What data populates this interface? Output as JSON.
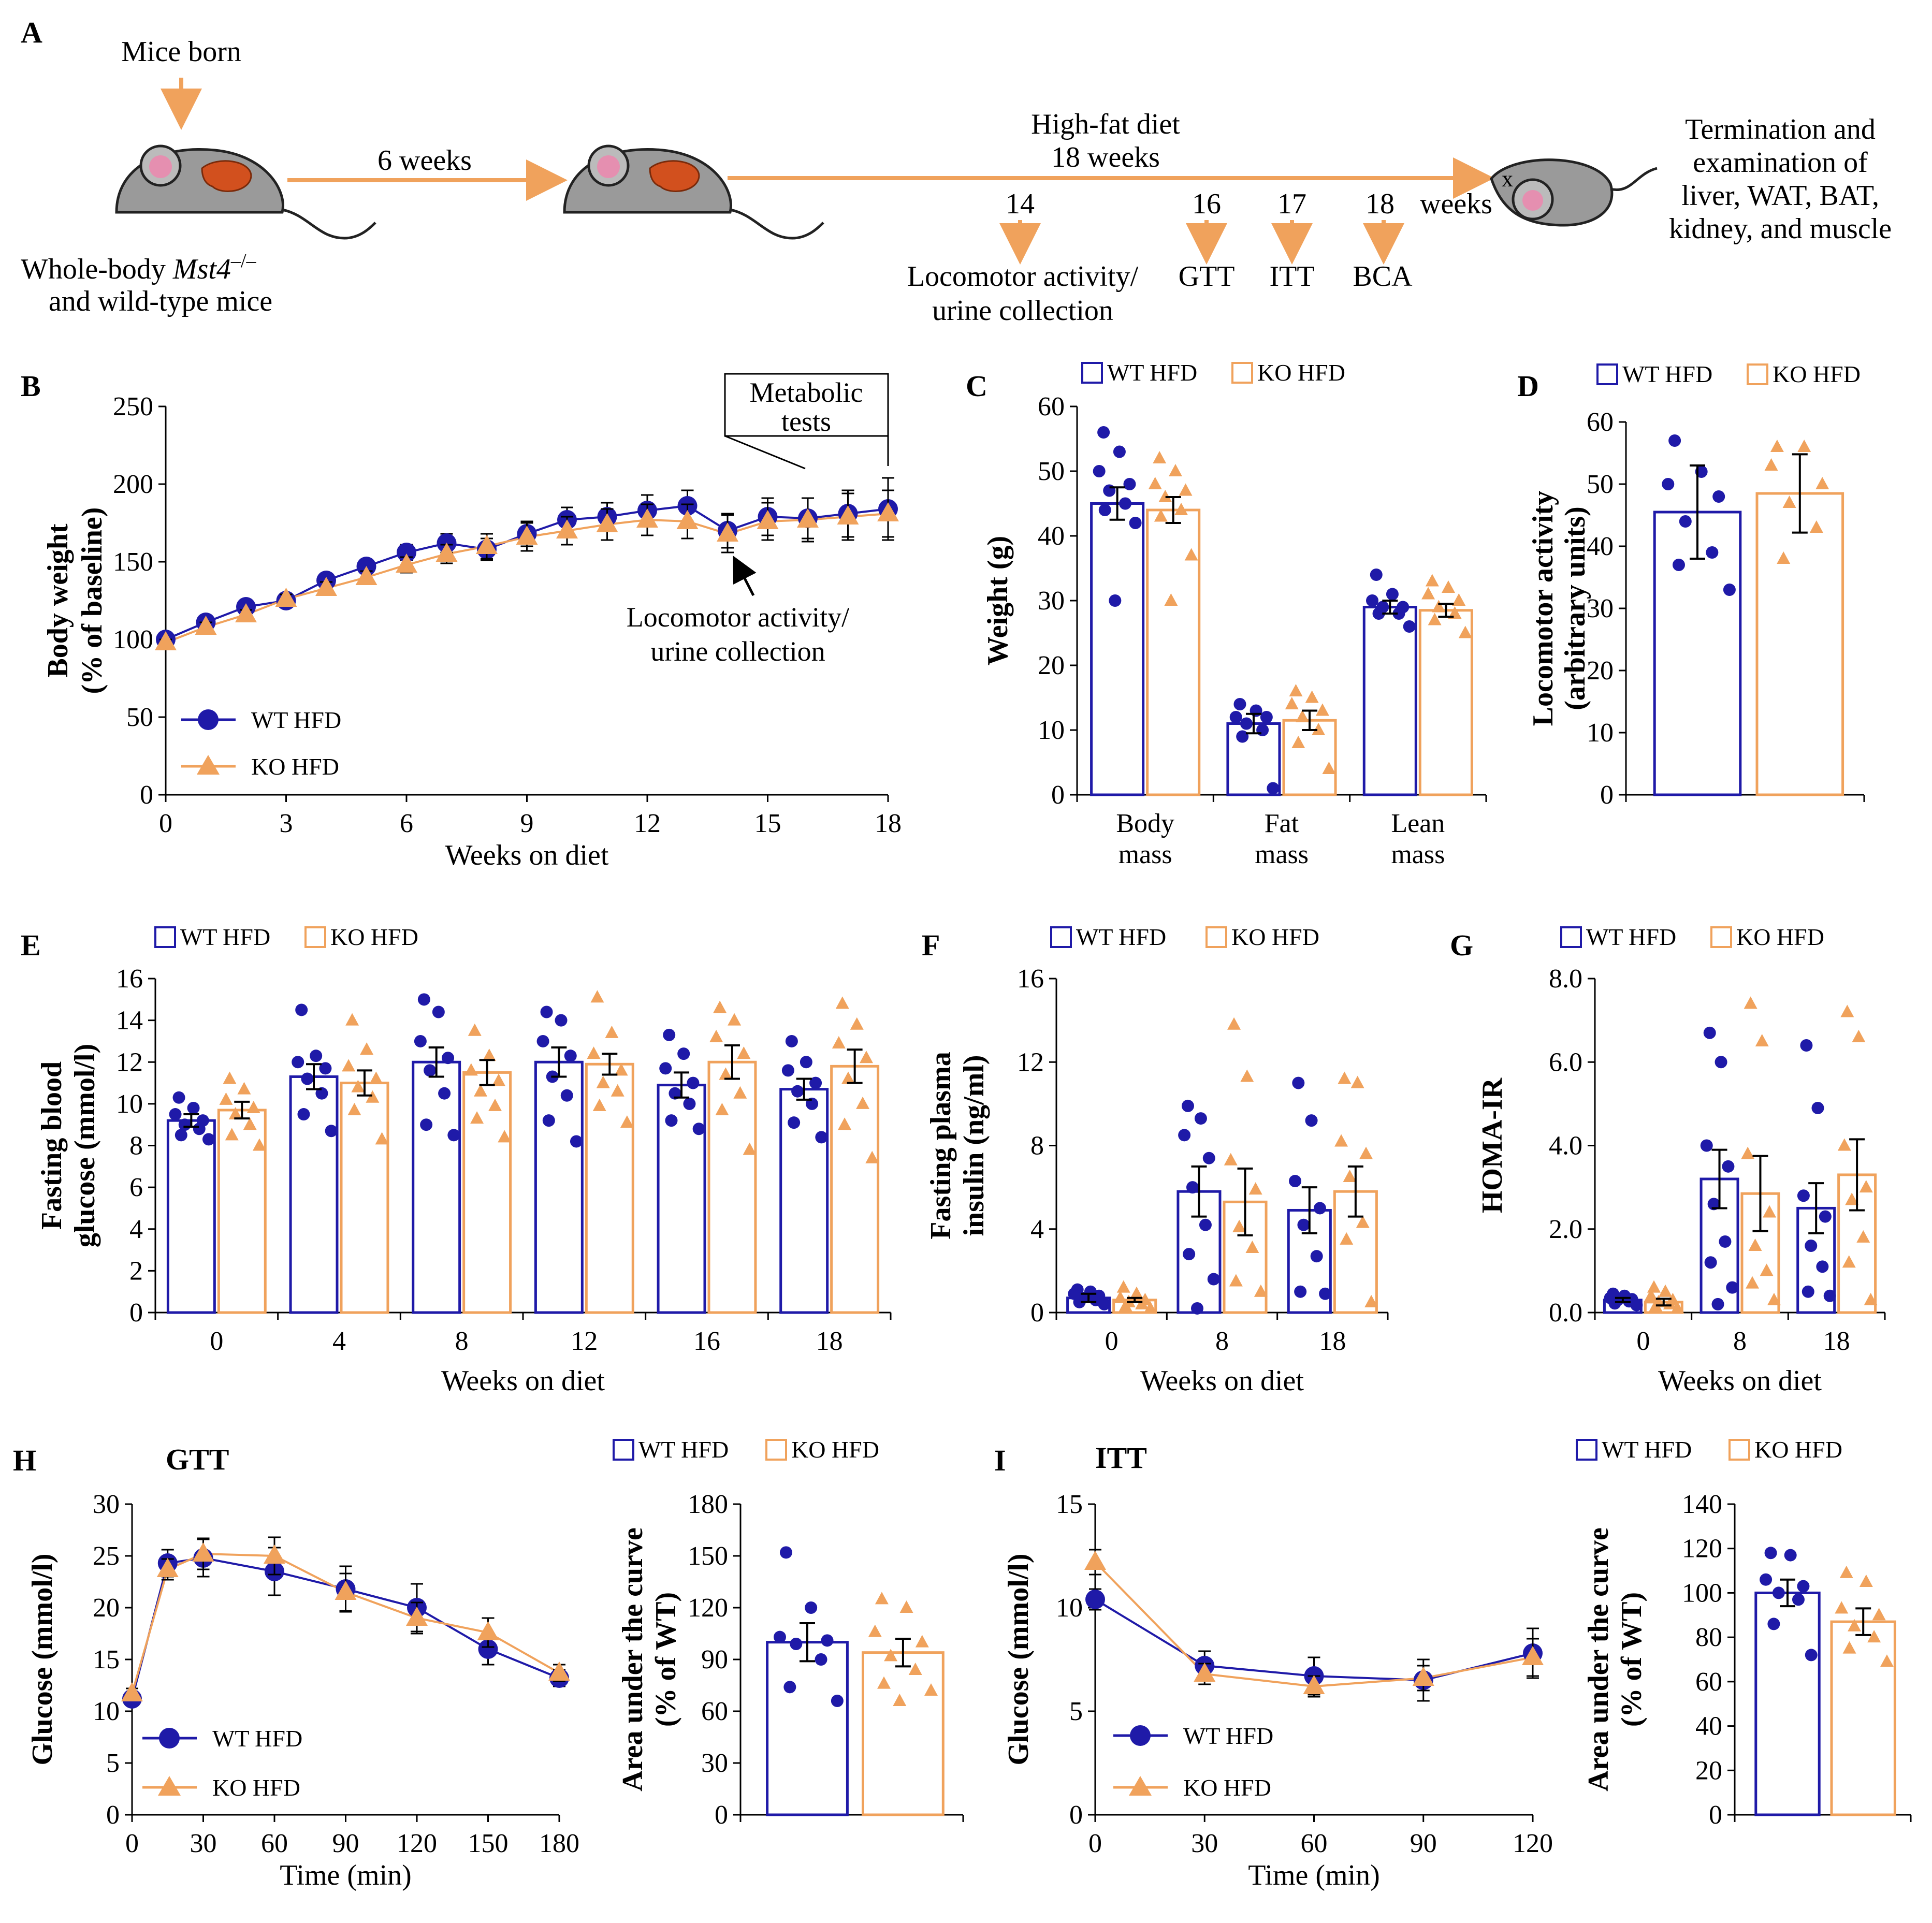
{
  "colors": {
    "wt": "#1f1aa8",
    "ko": "#f0a25c",
    "axis": "#000000"
  },
  "series_names": {
    "wt": "WT HFD",
    "ko": "KO HFD"
  },
  "panel_a": {
    "letter": "A",
    "mice_born": "Mice born",
    "whole_body_prefix": "Whole-body ",
    "gene": "Mst4",
    "superscript": "–/–",
    "line2": "and wild-type mice",
    "six_weeks": "6 weeks",
    "hfd_line1": "High-fat diet",
    "hfd_line2": "18 weeks",
    "weeks": "weeks",
    "marks": [
      {
        "num": "14",
        "label1": "Locomotor activity/",
        "label2": "urine collection"
      },
      {
        "num": "16",
        "label1": "GTT",
        "label2": ""
      },
      {
        "num": "17",
        "label1": "ITT",
        "label2": ""
      },
      {
        "num": "18",
        "label1": "BCA",
        "label2": ""
      }
    ],
    "termination": [
      "Termination and",
      "examination of",
      "liver, WAT, BAT,",
      "kidney, and muscle"
    ],
    "dead_mark": "x"
  },
  "chart_data": [
    {
      "id": "B",
      "type": "line",
      "letter": "B",
      "ylabel": [
        "Body weight",
        "(% of baseline)"
      ],
      "xlabel": "Weeks on diet",
      "ylim": [
        0,
        250
      ],
      "yticks": [
        0,
        50,
        100,
        150,
        200,
        250
      ],
      "xlim": [
        0,
        18
      ],
      "xticks": [
        0,
        3,
        6,
        9,
        12,
        15,
        18
      ],
      "x": [
        0,
        1,
        2,
        3,
        4,
        5,
        6,
        7,
        8,
        9,
        10,
        11,
        12,
        13,
        14,
        15,
        16,
        17,
        18
      ],
      "series": [
        {
          "name": "WT HFD",
          "values": [
            100,
            111,
            121,
            125,
            138,
            147,
            156,
            162,
            158,
            168,
            177,
            179,
            183,
            186,
            170,
            179,
            178,
            181,
            184
          ],
          "err": [
            2,
            3,
            3,
            3,
            4,
            4,
            5,
            6,
            7,
            8,
            8,
            9,
            10,
            10,
            11,
            12,
            13,
            15,
            20
          ]
        },
        {
          "name": "KO HFD",
          "values": [
            98,
            108,
            116,
            126,
            133,
            140,
            148,
            155,
            160,
            166,
            170,
            174,
            177,
            176,
            168,
            176,
            177,
            179,
            181
          ],
          "err": [
            2,
            3,
            3,
            3,
            4,
            4,
            5,
            6,
            8,
            9,
            9,
            10,
            10,
            11,
            12,
            12,
            14,
            15,
            15
          ]
        }
      ],
      "annotations": {
        "box": [
          "Metabolic",
          "tests"
        ],
        "arrow_text": [
          "Locomotor activity/",
          "urine collection"
        ]
      }
    },
    {
      "id": "C",
      "type": "bar",
      "letter": "C",
      "ylabel": [
        "Weight (g)"
      ],
      "xlabel": "",
      "ylim": [
        0,
        60
      ],
      "yticks": [
        0,
        10,
        20,
        30,
        40,
        50,
        60
      ],
      "categories": [
        [
          "Body",
          "mass"
        ],
        [
          "Fat",
          "mass"
        ],
        [
          "Lean",
          "mass"
        ]
      ],
      "series": [
        {
          "name": "WT HFD",
          "values": [
            45,
            11,
            29
          ],
          "err": [
            2.5,
            1.5,
            1
          ],
          "points": [
            [
              56,
              53,
              50,
              48,
              47,
              45,
              44,
              42,
              30
            ],
            [
              14,
              13,
              12,
              12,
              11,
              10,
              9,
              1
            ]
          ],
          "points3": [
            34,
            31,
            30,
            29,
            29,
            28,
            28,
            26
          ]
        },
        {
          "name": "KO HFD",
          "values": [
            44,
            11.5,
            28.5
          ],
          "err": [
            2,
            1.5,
            1
          ],
          "points": [
            [
              52,
              50,
              48,
              47,
              46,
              44,
              43,
              37,
              30
            ],
            [
              16,
              15,
              14,
              13,
              12,
              10,
              8,
              4
            ]
          ],
          "points3": [
            33,
            32,
            31,
            30,
            29,
            28,
            27,
            25
          ]
        }
      ]
    },
    {
      "id": "D",
      "type": "bar",
      "letter": "D",
      "ylabel": [
        "Locomotor activity",
        "(arbitrary units)"
      ],
      "xlabel": "",
      "ylim": [
        0,
        60
      ],
      "yticks": [
        0,
        10,
        20,
        30,
        40,
        50,
        60
      ],
      "categories": [
        [
          ""
        ]
      ],
      "series": [
        {
          "name": "WT HFD",
          "values": [
            45.5
          ],
          "err": [
            7.5
          ],
          "points": [
            [
              57,
              52,
              50,
              48,
              44,
              39,
              37,
              33
            ]
          ]
        },
        {
          "name": "KO HFD",
          "values": [
            48.5
          ],
          "err": [
            6.3
          ],
          "points": [
            [
              56,
              56,
              53,
              50,
              47,
              43,
              38
            ]
          ]
        }
      ]
    },
    {
      "id": "E",
      "type": "bar",
      "letter": "E",
      "ylabel": [
        "Fasting blood",
        "glucose (mmol/l)"
      ],
      "xlabel": "Weeks on diet",
      "ylim": [
        0,
        16
      ],
      "yticks": [
        0,
        2,
        4,
        6,
        8,
        10,
        12,
        14,
        16
      ],
      "categories": [
        [
          "0"
        ],
        [
          "4"
        ],
        [
          "8"
        ],
        [
          "12"
        ],
        [
          "16"
        ],
        [
          "18"
        ]
      ],
      "series": [
        {
          "name": "WT HFD",
          "values": [
            9.2,
            11.3,
            12.0,
            12.0,
            10.9,
            10.7
          ],
          "err": [
            0.3,
            0.6,
            0.7,
            0.7,
            0.6,
            0.5
          ],
          "points": [
            [
              10.3,
              9.8,
              9.5,
              9.2,
              9.0,
              8.8,
              8.5,
              8.3
            ],
            [
              14.5,
              12.3,
              12.0,
              11.7,
              11.2,
              10.5,
              9.5,
              8.7
            ],
            [
              15.0,
              14.4,
              13.0,
              12.2,
              11.6,
              10.5,
              9.0,
              8.5
            ],
            [
              14.4,
              14.0,
              13.0,
              12.3,
              11.3,
              10.4,
              9.2,
              8.2
            ],
            [
              13.3,
              12.4,
              11.7,
              11.0,
              10.5,
              10.0,
              9.2,
              8.8
            ],
            [
              13.0,
              12.0,
              11.6,
              11.0,
              10.6,
              10.0,
              9.1,
              8.4
            ]
          ]
        },
        {
          "name": "KO HFD",
          "values": [
            9.7,
            11.0,
            11.5,
            11.9,
            12.0,
            11.8
          ],
          "err": [
            0.4,
            0.6,
            0.6,
            0.5,
            0.8,
            0.8
          ],
          "points": [
            [
              11.2,
              10.7,
              10.2,
              9.8,
              9.5,
              9.0,
              8.5,
              8.0
            ],
            [
              14.0,
              12.6,
              11.8,
              11.2,
              10.8,
              10.3,
              9.7,
              8.3
            ],
            [
              13.5,
              12.3,
              11.6,
              11.1,
              10.6,
              9.9,
              9.3,
              8.4
            ],
            [
              15.1,
              13.4,
              12.4,
              11.6,
              11.0,
              10.6,
              9.9,
              9.1
            ],
            [
              14.6,
              14.0,
              13.2,
              12.4,
              11.4,
              10.5,
              9.7,
              7.8
            ],
            [
              14.8,
              13.8,
              12.9,
              12.2,
              11.2,
              10.0,
              9.0,
              7.4
            ]
          ]
        }
      ]
    },
    {
      "id": "F",
      "type": "bar",
      "letter": "F",
      "ylabel": [
        "Fasting plasma",
        "insulin (ng/ml)"
      ],
      "xlabel": "Weeks on diet",
      "ylim": [
        0,
        16
      ],
      "yticks": [
        0,
        4,
        8,
        12,
        16
      ],
      "categories": [
        [
          "0"
        ],
        [
          "8"
        ],
        [
          "18"
        ]
      ],
      "series": [
        {
          "name": "WT HFD",
          "values": [
            0.7,
            5.8,
            4.9
          ],
          "err": [
            0.2,
            1.2,
            1.1
          ],
          "points": [
            [
              1.1,
              1.0,
              0.9,
              0.8,
              0.7,
              0.6,
              0.5,
              0.4
            ],
            [
              9.9,
              9.3,
              8.5,
              7.4,
              6.0,
              4.2,
              2.8,
              1.6,
              0.2
            ],
            [
              11.0,
              9.2,
              6.3,
              5.0,
              4.2,
              2.7,
              1.0,
              0.9
            ]
          ]
        },
        {
          "name": "KO HFD",
          "values": [
            0.6,
            5.3,
            5.8
          ],
          "err": [
            0.1,
            1.6,
            1.2
          ],
          "points": [
            [
              1.2,
              0.9,
              0.7,
              0.6,
              0.5,
              0.4,
              0.3,
              0.2
            ],
            [
              13.8,
              11.3,
              7.3,
              5.9,
              4.1,
              3.1,
              1.5,
              1.0
            ],
            [
              11.2,
              11.0,
              8.2,
              7.6,
              6.5,
              4.3,
              3.5,
              0.5
            ]
          ]
        }
      ]
    },
    {
      "id": "G",
      "type": "bar",
      "letter": "G",
      "ylabel": [
        "HOMA-IR"
      ],
      "xlabel": "Weeks on diet",
      "ylim": [
        0,
        8
      ],
      "yticks": [
        0,
        2,
        4,
        6,
        8
      ],
      "tick_format": "fixed1",
      "categories": [
        [
          "0"
        ],
        [
          "8"
        ],
        [
          "18"
        ]
      ],
      "series": [
        {
          "name": "WT HFD",
          "values": [
            0.3,
            3.2,
            2.5
          ],
          "err": [
            0.05,
            0.7,
            0.6
          ],
          "points": [
            [
              0.45,
              0.4,
              0.35,
              0.32,
              0.3,
              0.27,
              0.22,
              0.18
            ],
            [
              6.7,
              6.0,
              4.0,
              3.5,
              2.6,
              1.7,
              1.2,
              0.6,
              0.2
            ],
            [
              6.4,
              4.9,
              2.8,
              2.3,
              1.6,
              1.1,
              0.5,
              0.4
            ]
          ]
        },
        {
          "name": "KO HFD",
          "values": [
            0.25,
            2.85,
            3.3
          ],
          "err": [
            0.08,
            0.9,
            0.85
          ],
          "points": [
            [
              0.6,
              0.5,
              0.4,
              0.3,
              0.25,
              0.2,
              0.15,
              0.1
            ],
            [
              7.4,
              6.5,
              3.8,
              2.4,
              1.6,
              1.0,
              0.7,
              0.3
            ],
            [
              7.2,
              6.6,
              4.0,
              3.0,
              2.7,
              1.8,
              1.2,
              0.3
            ]
          ]
        }
      ]
    },
    {
      "id": "H",
      "type": "line",
      "letter": "H",
      "title": "GTT",
      "ylabel": [
        "Glucose (mmol/l)"
      ],
      "xlabel": "Time (min)",
      "ylim": [
        0,
        30
      ],
      "yticks": [
        0,
        5,
        10,
        15,
        20,
        25,
        30
      ],
      "xlim": [
        0,
        180
      ],
      "xticks": [
        0,
        30,
        60,
        90,
        120,
        150,
        180
      ],
      "x": [
        0,
        15,
        30,
        60,
        90,
        120,
        150,
        180
      ],
      "series": [
        {
          "name": "WT HFD",
          "values": [
            11.2,
            24.3,
            24.8,
            23.5,
            21.8,
            20.0,
            16.0,
            13.2
          ],
          "err": [
            0.5,
            1.3,
            1.8,
            2.3,
            2.2,
            2.3,
            1.5,
            0.8
          ]
        },
        {
          "name": "KO HFD",
          "values": [
            11.7,
            23.7,
            25.2,
            25.0,
            21.5,
            19.0,
            17.6,
            13.7
          ],
          "err": [
            0.5,
            1.0,
            1.5,
            1.8,
            1.8,
            1.5,
            1.4,
            0.8
          ]
        }
      ]
    },
    {
      "id": "H2",
      "type": "bar",
      "ylabel": [
        "Area under the curve",
        "(% of WT)"
      ],
      "xlabel": "",
      "ylim": [
        0,
        180
      ],
      "yticks": [
        0,
        30,
        60,
        90,
        120,
        150,
        180
      ],
      "categories": [
        [
          ""
        ]
      ],
      "series": [
        {
          "name": "WT HFD",
          "values": [
            100
          ],
          "err": [
            11
          ],
          "points": [
            [
              152,
              120,
              103,
              101,
              99,
              90,
              74,
              66
            ]
          ]
        },
        {
          "name": "KO HFD",
          "values": [
            94
          ],
          "err": [
            8
          ],
          "points": [
            [
              125,
              120,
              106,
              100,
              92,
              84,
              76,
              72,
              66
            ]
          ]
        }
      ]
    },
    {
      "id": "I",
      "type": "line",
      "letter": "I",
      "title": "ITT",
      "ylabel": [
        "Glucose (mmol/l)"
      ],
      "xlabel": "Time (min)",
      "ylim": [
        0,
        15
      ],
      "yticks": [
        0,
        5,
        10,
        15
      ],
      "xlim": [
        0,
        120
      ],
      "xticks": [
        0,
        30,
        60,
        90,
        120
      ],
      "x": [
        0,
        30,
        60,
        90,
        120
      ],
      "series": [
        {
          "name": "WT HFD",
          "values": [
            10.4,
            7.2,
            6.7,
            6.5,
            7.8
          ],
          "err": [
            0.5,
            0.7,
            0.9,
            1.0,
            1.2
          ]
        },
        {
          "name": "KO HFD",
          "values": [
            12.2,
            6.8,
            6.2,
            6.6,
            7.6
          ],
          "err": [
            0.6,
            0.5,
            0.5,
            0.6,
            0.9
          ]
        }
      ]
    },
    {
      "id": "I2",
      "type": "bar",
      "ylabel": [
        "Area under the curve",
        "(% of WT)"
      ],
      "xlabel": "",
      "ylim": [
        0,
        140
      ],
      "yticks": [
        0,
        20,
        40,
        60,
        80,
        100,
        120,
        140
      ],
      "categories": [
        [
          ""
        ]
      ],
      "series": [
        {
          "name": "WT HFD",
          "values": [
            100
          ],
          "err": [
            6
          ],
          "points": [
            [
              118,
              117,
              106,
              103,
              100,
              97,
              86,
              72
            ]
          ]
        },
        {
          "name": "KO HFD",
          "values": [
            87
          ],
          "err": [
            6
          ],
          "points": [
            [
              109,
              105,
              93,
              90,
              85,
              80,
              75,
              69
            ]
          ]
        }
      ]
    }
  ]
}
